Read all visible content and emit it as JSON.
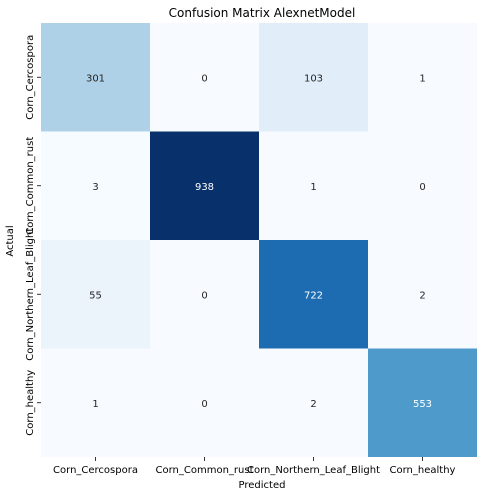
{
  "chart_data": {
    "type": "heatmap",
    "title": "Confusion Matrix AlexnetModel",
    "xlabel": "Predicted",
    "ylabel": "Actual",
    "x_categories": [
      "Corn_Cercospora",
      "Corn_Common_rust",
      "Corn_Northern_Leaf_Blight",
      "Corn_healthy"
    ],
    "y_categories": [
      "Corn_Cercospora",
      "Corn_Common_rust",
      "Corn_Northern_Leaf_Blight",
      "Corn_healthy"
    ],
    "values": [
      [
        301,
        0,
        103,
        1
      ],
      [
        3,
        938,
        1,
        0
      ],
      [
        55,
        0,
        722,
        2
      ],
      [
        1,
        0,
        2,
        553
      ]
    ],
    "colormap": "Blues",
    "color_low": "#f7fbff",
    "color_high": "#08306b",
    "colorbar": false
  }
}
